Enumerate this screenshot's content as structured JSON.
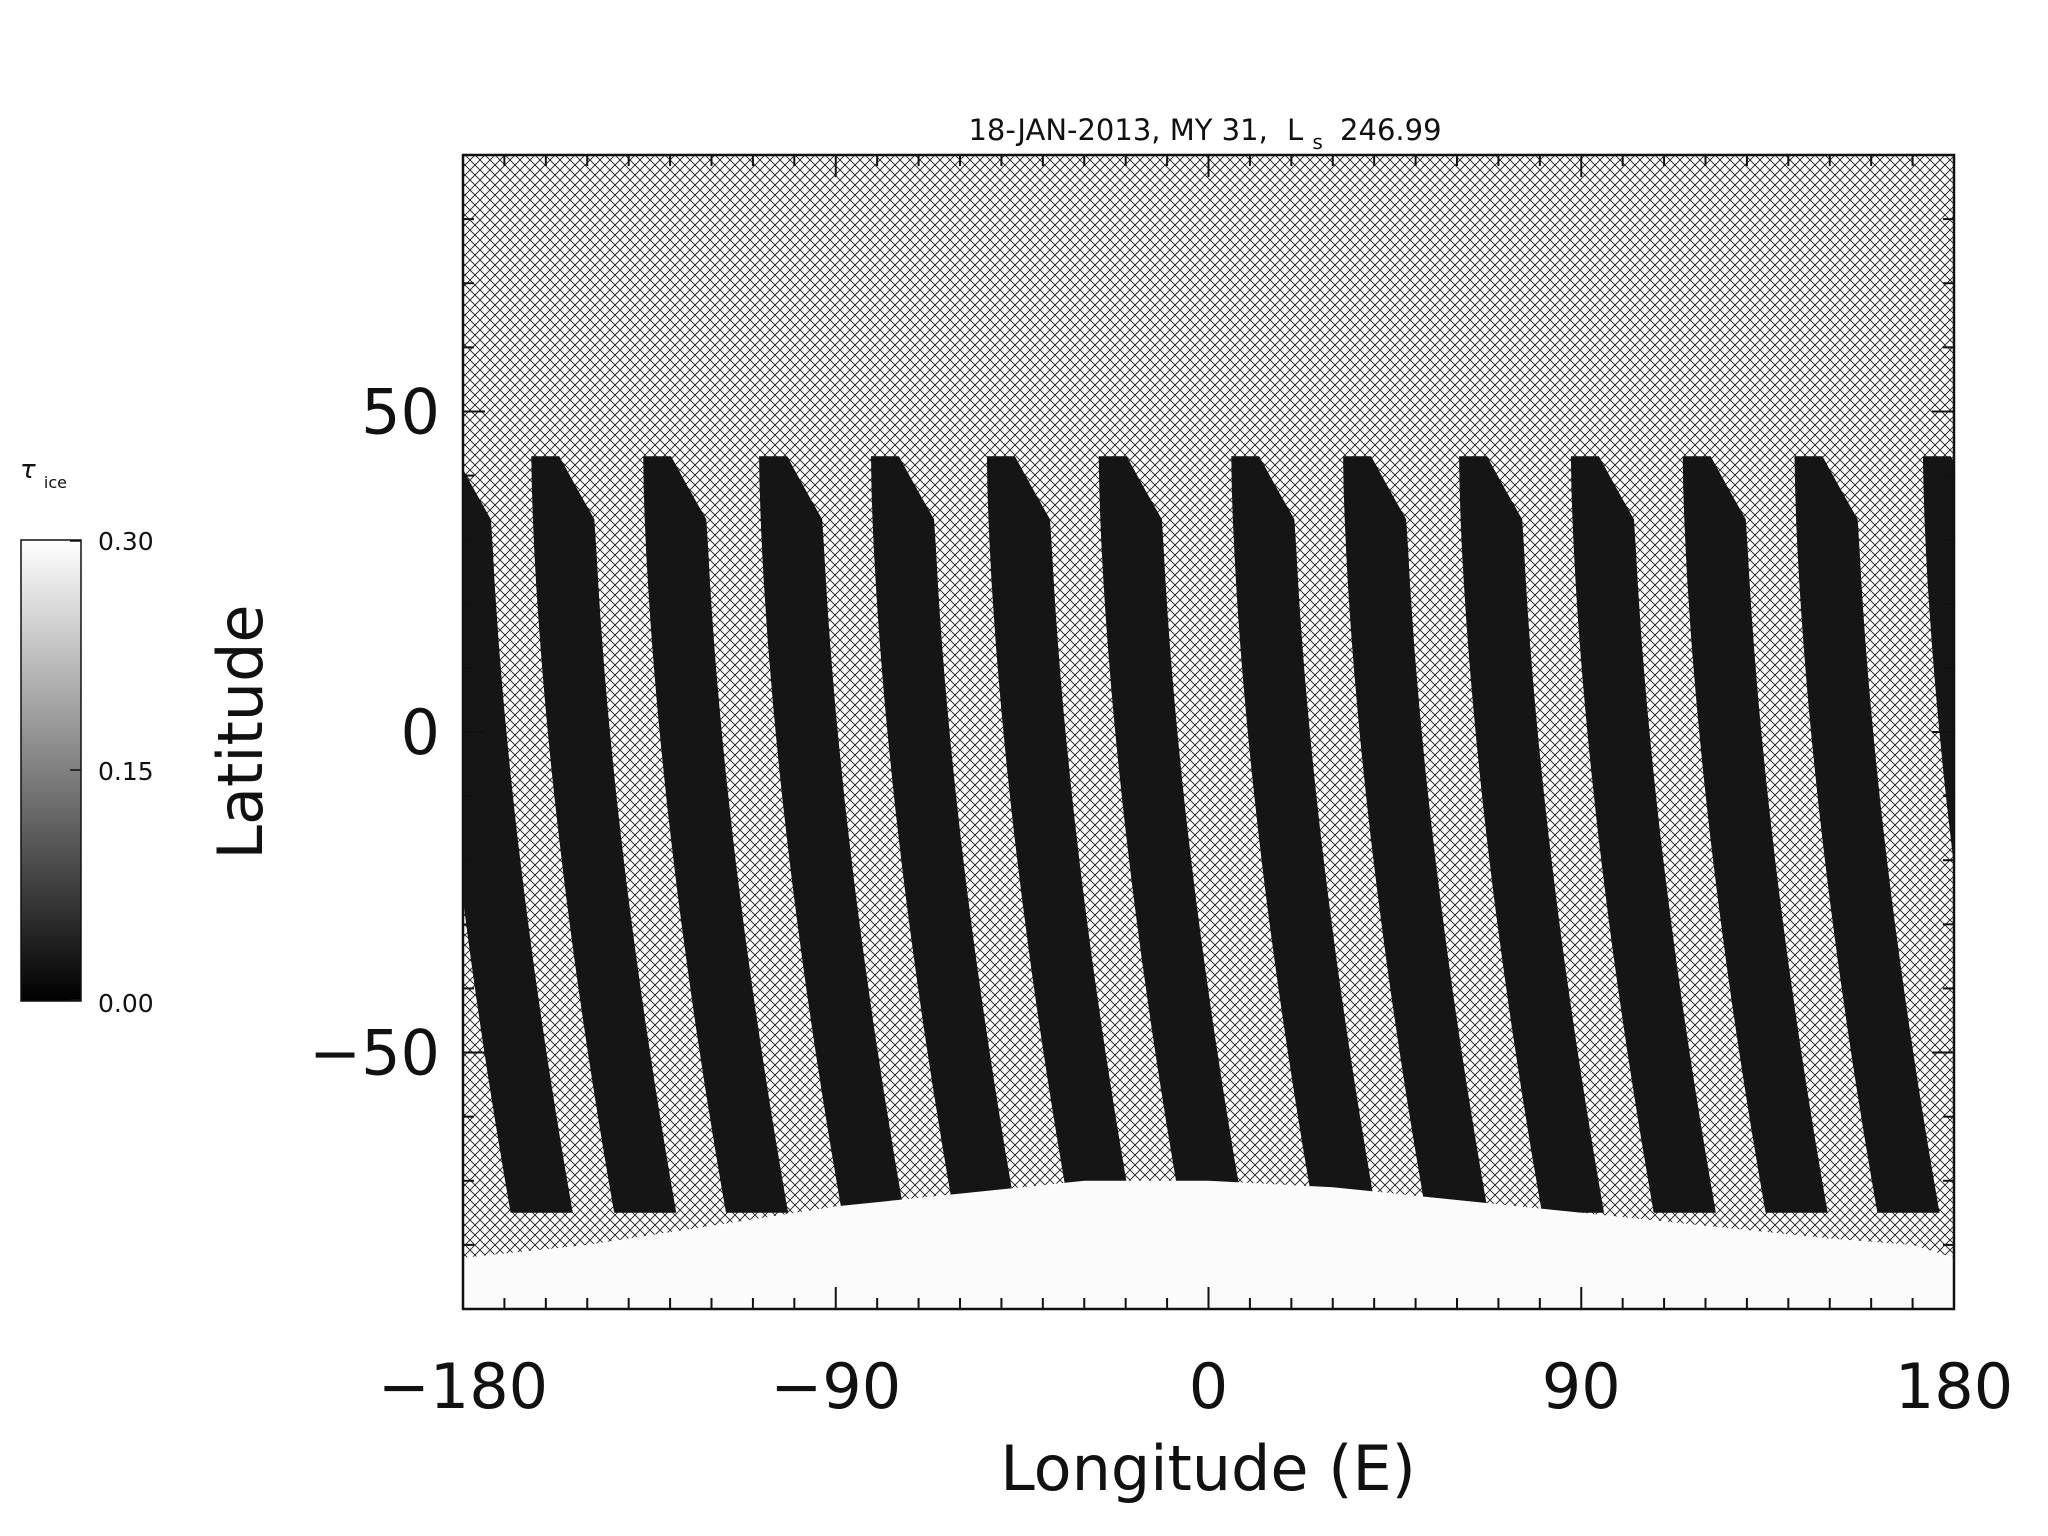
{
  "chart_data": {
    "type": "heatmap",
    "title": {
      "date": "18-JAN-2013, MY 31,",
      "ls_symbol": "L",
      "ls_subscript": "s",
      "ls_value": "246.99"
    },
    "xlabel": "Longitude (E)",
    "ylabel": "Latitude",
    "xlim": [
      -180,
      180
    ],
    "ylim": [
      -90,
      90
    ],
    "x_ticks": [
      -180,
      -90,
      0,
      90,
      180
    ],
    "x_tick_labels": [
      "−180",
      "−90",
      "0",
      "90",
      "180"
    ],
    "y_ticks": [
      -50,
      0,
      50
    ],
    "y_tick_labels": [
      "−50",
      "0",
      "50"
    ],
    "x_minor_step": 10,
    "y_minor_step": 10,
    "colorbar": {
      "symbol": "τ",
      "subscript": "ice",
      "min_label": "0.00",
      "mid_label": "0.15",
      "max_label": "0.30",
      "range": [
        0,
        0.3
      ],
      "colors": [
        "#000000",
        "#ffffff"
      ]
    },
    "no_data_pattern": "crosshatch",
    "swaths": {
      "count": 14,
      "lat_top": 43,
      "lat_bottom": -75,
      "center_lon_at_top": [
        -181,
        -156,
        -129,
        -101,
        -74,
        -46,
        -19,
        13,
        40,
        68,
        95,
        122,
        149,
        180
      ],
      "width_deg": 15,
      "tilt_deg_lon": 20,
      "value": 0.01,
      "color": "#151515"
    },
    "polar_cap": {
      "value": 0.3,
      "color": "#fbfbfb",
      "edge_lat": [
        -82,
        -80,
        -77,
        -74,
        -72,
        -70,
        -70,
        -71,
        -73,
        -75,
        -77,
        -79,
        -80,
        -82
      ],
      "edge_lon": [
        -180,
        -150,
        -120,
        -90,
        -60,
        -30,
        0,
        30,
        60,
        90,
        120,
        150,
        170,
        180
      ]
    }
  }
}
